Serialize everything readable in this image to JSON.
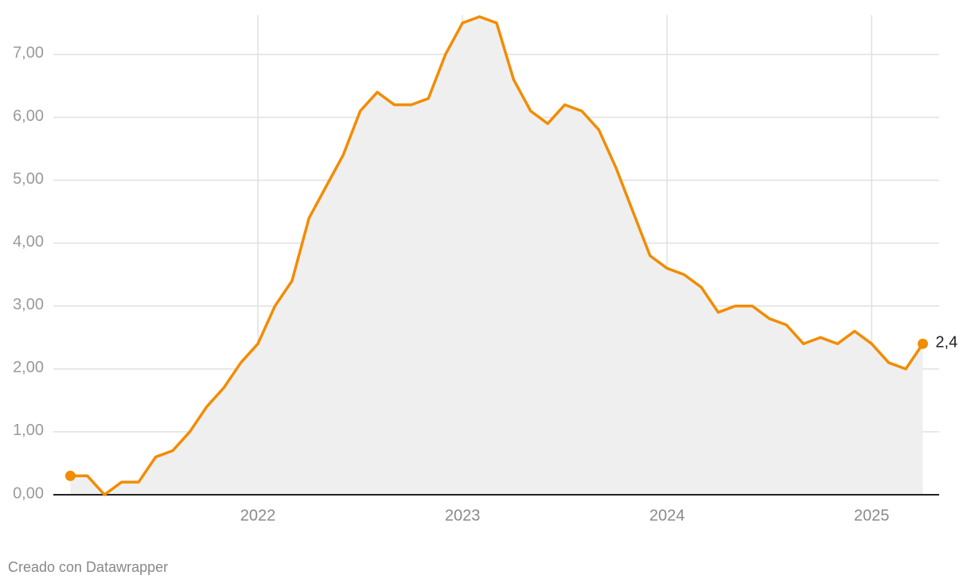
{
  "chart_data": {
    "type": "area-line",
    "x": [
      2021.0833,
      2021.1667,
      2021.25,
      2021.3333,
      2021.4167,
      2021.5,
      2021.5833,
      2021.6667,
      2021.75,
      2021.8333,
      2021.9167,
      2022,
      2022.0833,
      2022.1667,
      2022.25,
      2022.3333,
      2022.4167,
      2022.5,
      2022.5833,
      2022.6667,
      2022.75,
      2022.8333,
      2022.9167,
      2023,
      2023.0833,
      2023.1667,
      2023.25,
      2023.3333,
      2023.4167,
      2023.5,
      2023.5833,
      2023.6667,
      2023.75,
      2023.8333,
      2023.9167,
      2024,
      2024.0833,
      2024.1667,
      2024.25,
      2024.3333,
      2024.4167,
      2024.5,
      2024.5833,
      2024.6667,
      2024.75,
      2024.8333,
      2024.9167,
      2025,
      2025.0833,
      2025.1667,
      2025.25
    ],
    "series": [
      {
        "color": "#f28c00",
        "area_color": "#efefef",
        "values": [
          0.3,
          0.3,
          0.0,
          0.2,
          0.2,
          0.6,
          0.7,
          1.0,
          1.4,
          1.7,
          2.1,
          2.4,
          3.0,
          3.4,
          4.4,
          4.9,
          5.4,
          6.1,
          6.4,
          6.2,
          6.2,
          6.3,
          7.0,
          7.5,
          7.6,
          7.5,
          6.6,
          6.1,
          5.9,
          6.2,
          6.1,
          5.8,
          5.2,
          4.5,
          3.8,
          3.6,
          3.5,
          3.3,
          2.9,
          3.0,
          3.0,
          2.8,
          2.7,
          2.4,
          2.5,
          2.4,
          2.6,
          2.4,
          2.1,
          2.0,
          2.4
        ],
        "value_labels": [
          null,
          null,
          null,
          null,
          null,
          null,
          null,
          null,
          null,
          null,
          null,
          null,
          null,
          null,
          null,
          null,
          null,
          null,
          null,
          null,
          null,
          null,
          null,
          null,
          null,
          null,
          null,
          null,
          null,
          null,
          null,
          null,
          null,
          null,
          null,
          null,
          null,
          null,
          null,
          null,
          null,
          null,
          null,
          null,
          null,
          null,
          null,
          null,
          null,
          null,
          "2,4"
        ]
      }
    ],
    "xlim": [
      2021,
      2025.33
    ],
    "xticks": [
      2022,
      2023,
      2024,
      2025
    ],
    "ylim": [
      0,
      7.6
    ],
    "yticks": [
      {
        "value": 0,
        "label": "0,00"
      },
      {
        "value": 1,
        "label": "1,00"
      },
      {
        "value": 2,
        "label": "2,00"
      },
      {
        "value": 3,
        "label": "3,00"
      },
      {
        "value": 4,
        "label": "4,00"
      },
      {
        "value": 5,
        "label": "5,00"
      },
      {
        "value": 6,
        "label": "6,00"
      },
      {
        "value": 7,
        "label": "7,00"
      }
    ],
    "grid": true,
    "footer": "Creado con Datawrapper"
  }
}
